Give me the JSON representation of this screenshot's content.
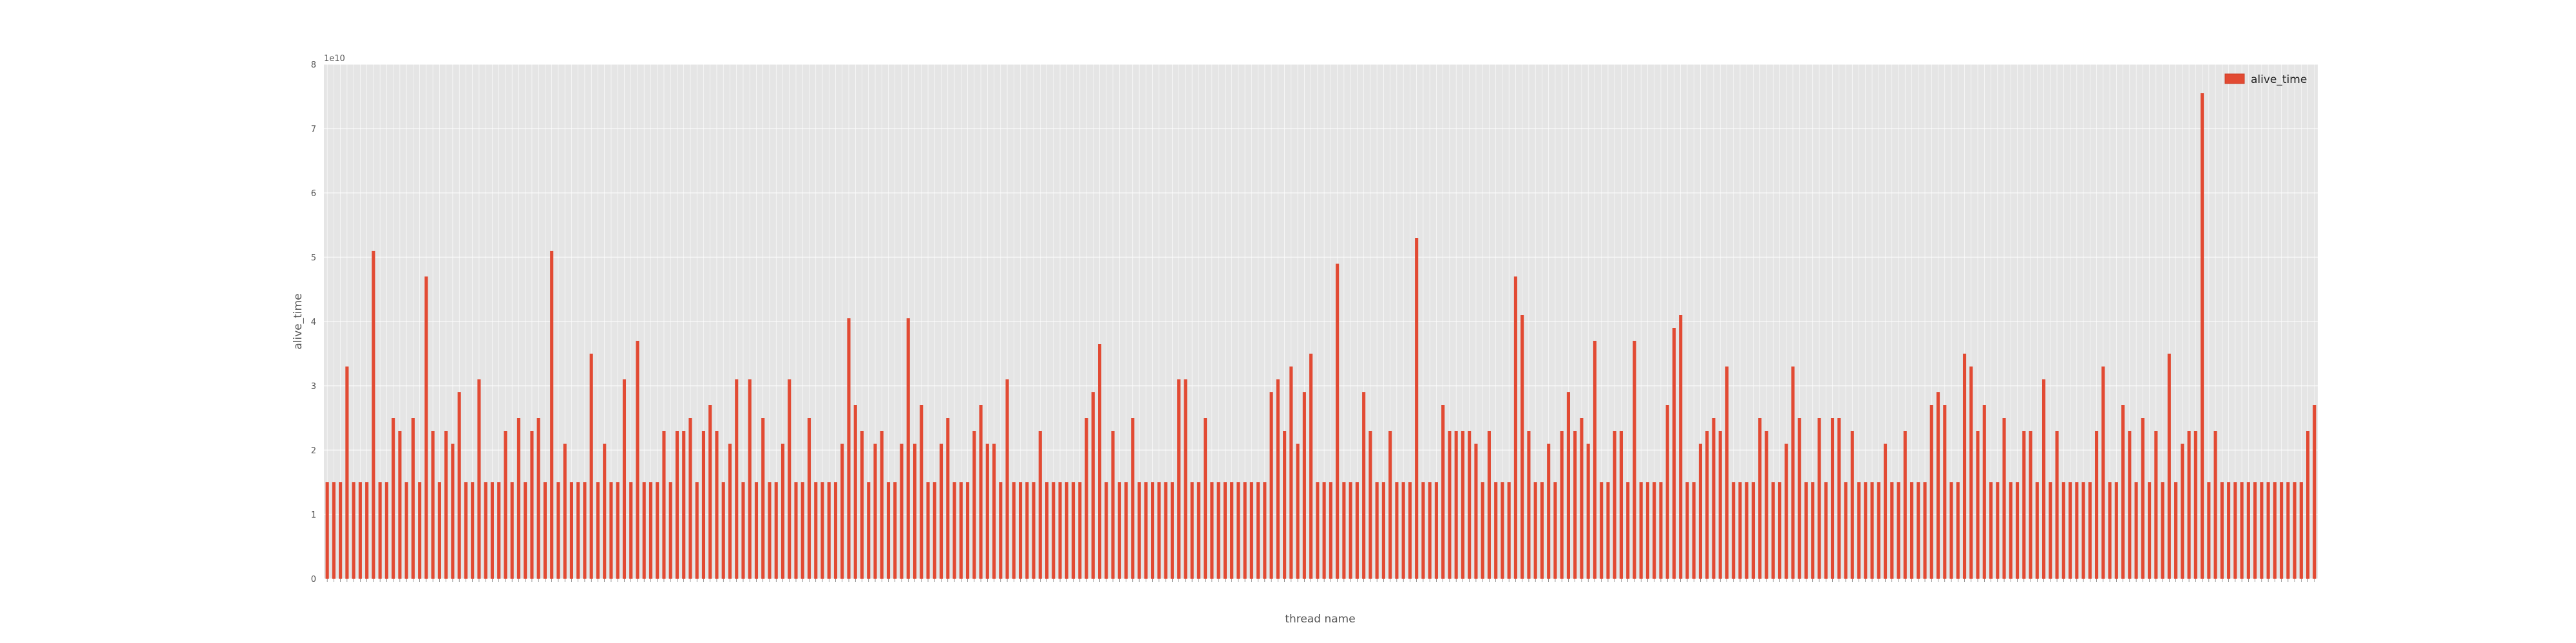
{
  "chart_data": {
    "type": "bar",
    "xlabel": "thread name",
    "ylabel": "alive_time",
    "y_offset_label": "1e10",
    "ylim": [
      0,
      8
    ],
    "yticks": [
      "0",
      "1",
      "2",
      "3",
      "4",
      "5",
      "6",
      "7",
      "8"
    ],
    "grid": true,
    "legend_position": "top-right",
    "bar_color": "#E24A33",
    "background_color": "#E5E5E5",
    "series": [
      {
        "name": "alive_time",
        "values": [
          1.5,
          1.5,
          1.5,
          3.3,
          1.5,
          1.5,
          1.5,
          5.1,
          1.5,
          1.5,
          2.5,
          2.3,
          1.5,
          2.5,
          1.5,
          4.7,
          2.3,
          1.5,
          2.3,
          2.1,
          2.9,
          1.5,
          1.5,
          3.1,
          1.5,
          1.5,
          1.5,
          2.3,
          1.5,
          2.5,
          1.5,
          2.3,
          2.5,
          1.5,
          5.1,
          1.5,
          2.1,
          1.5,
          1.5,
          1.5,
          3.5,
          1.5,
          2.1,
          1.5,
          1.5,
          3.1,
          1.5,
          3.7,
          1.5,
          1.5,
          1.5,
          2.3,
          1.5,
          2.3,
          2.3,
          2.5,
          1.5,
          2.3,
          2.7,
          2.3,
          1.5,
          2.1,
          3.1,
          1.5,
          3.1,
          1.5,
          2.5,
          1.5,
          1.5,
          2.1,
          3.1,
          1.5,
          1.5,
          2.5,
          1.5,
          1.5,
          1.5,
          1.5,
          2.1,
          4.05,
          2.7,
          2.3,
          1.5,
          2.1,
          2.3,
          1.5,
          1.5,
          2.1,
          4.05,
          2.1,
          2.7,
          1.5,
          1.5,
          2.1,
          2.5,
          1.5,
          1.5,
          1.5,
          2.3,
          2.7,
          2.1,
          2.1,
          1.5,
          3.1,
          1.5,
          1.5,
          1.5,
          1.5,
          2.3,
          1.5,
          1.5,
          1.5,
          1.5,
          1.5,
          1.5,
          2.5,
          2.9,
          3.65,
          1.5,
          2.3,
          1.5,
          1.5,
          2.5,
          1.5,
          1.5,
          1.5,
          1.5,
          1.5,
          1.5,
          3.1,
          3.1,
          1.5,
          1.5,
          2.5,
          1.5,
          1.5,
          1.5,
          1.5,
          1.5,
          1.5,
          1.5,
          1.5,
          1.5,
          2.9,
          3.1,
          2.3,
          3.3,
          2.1,
          2.9,
          3.5,
          1.5,
          1.5,
          1.5,
          4.9,
          1.5,
          1.5,
          1.5,
          2.9,
          2.3,
          1.5,
          1.5,
          2.3,
          1.5,
          1.5,
          1.5,
          5.3,
          1.5,
          1.5,
          1.5,
          2.7,
          2.3,
          2.3,
          2.3,
          2.3,
          2.1,
          1.5,
          2.3,
          1.5,
          1.5,
          1.5,
          4.7,
          4.1,
          2.3,
          1.5,
          1.5,
          2.1,
          1.5,
          2.3,
          2.9,
          2.3,
          2.5,
          2.1,
          3.7,
          1.5,
          1.5,
          2.3,
          2.3,
          1.5,
          3.7,
          1.5,
          1.5,
          1.5,
          1.5,
          2.7,
          3.9,
          4.1,
          1.5,
          1.5,
          2.1,
          2.3,
          2.5,
          2.3,
          3.3,
          1.5,
          1.5,
          1.5,
          1.5,
          2.5,
          2.3,
          1.5,
          1.5,
          2.1,
          3.3,
          2.5,
          1.5,
          1.5,
          2.5,
          1.5,
          2.5,
          2.5,
          1.5,
          2.3,
          1.5,
          1.5,
          1.5,
          1.5,
          2.1,
          1.5,
          1.5,
          2.3,
          1.5,
          1.5,
          1.5,
          2.7,
          2.9,
          2.7,
          1.5,
          1.5,
          3.5,
          3.3,
          2.3,
          2.7,
          1.5,
          1.5,
          2.5,
          1.5,
          1.5,
          2.3,
          2.3,
          1.5,
          3.1,
          1.5,
          2.3,
          1.5,
          1.5,
          1.5,
          1.5,
          1.5,
          2.3,
          3.3,
          1.5,
          1.5,
          2.7,
          2.3,
          1.5,
          2.5,
          1.5,
          2.3,
          1.5,
          3.5,
          1.5,
          2.1,
          2.3,
          2.3,
          7.55,
          1.5,
          2.3,
          1.5,
          1.5,
          1.5,
          1.5,
          1.5,
          1.5,
          1.5,
          1.5,
          1.5,
          1.5,
          1.5,
          1.5,
          1.5,
          2.3,
          2.7
        ]
      }
    ]
  }
}
